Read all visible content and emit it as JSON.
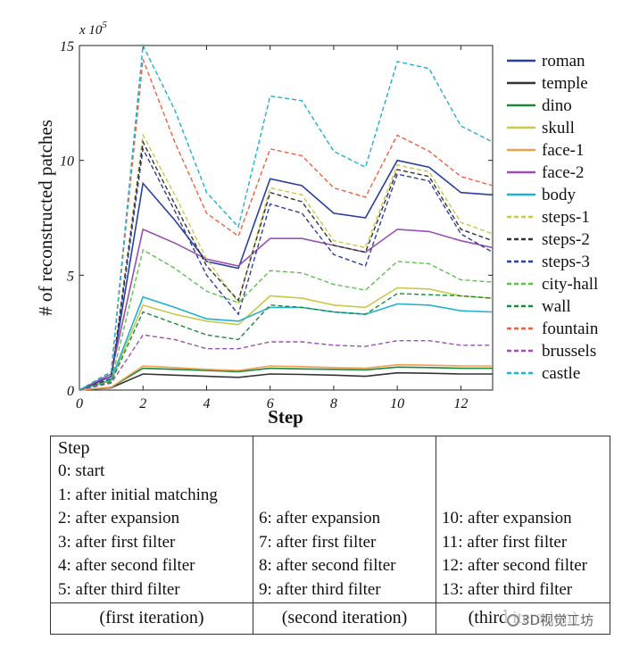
{
  "chart_data": {
    "type": "line",
    "title": "",
    "xlabel": "Step",
    "ylabel": "# of reconstructed patches",
    "y_multiplier": "x 10",
    "y_multiplier_exp": "5",
    "xlim": [
      0,
      13
    ],
    "ylim": [
      0,
      15
    ],
    "xticks": [
      0,
      2,
      4,
      6,
      8,
      10,
      12
    ],
    "yticks": [
      0,
      5,
      10,
      15
    ],
    "grid": false,
    "legend_position": "right",
    "x": [
      0,
      1,
      2,
      3,
      4,
      5,
      6,
      7,
      8,
      9,
      10,
      11,
      12,
      13
    ],
    "series": [
      {
        "name": "roman",
        "color": "#2a3f9e",
        "dash": "solid",
        "values": [
          0,
          0.6,
          9.0,
          7.4,
          5.6,
          5.3,
          9.2,
          8.9,
          7.7,
          7.5,
          10.0,
          9.7,
          8.6,
          8.5
        ]
      },
      {
        "name": "temple",
        "color": "#333333",
        "dash": "solid",
        "values": [
          0,
          0.1,
          0.7,
          0.65,
          0.6,
          0.55,
          0.7,
          0.68,
          0.65,
          0.6,
          0.75,
          0.73,
          0.7,
          0.7
        ]
      },
      {
        "name": "dino",
        "color": "#1a8a3a",
        "dash": "solid",
        "values": [
          0,
          0.12,
          0.95,
          0.9,
          0.85,
          0.8,
          0.95,
          0.92,
          0.9,
          0.88,
          1.0,
          0.98,
          0.95,
          0.95
        ]
      },
      {
        "name": "skull",
        "color": "#c8c84a",
        "dash": "solid",
        "values": [
          0,
          0.4,
          3.7,
          3.3,
          3.0,
          2.85,
          4.1,
          4.0,
          3.7,
          3.6,
          4.45,
          4.4,
          4.1,
          4.0
        ]
      },
      {
        "name": "face-1",
        "color": "#f0a050",
        "dash": "solid",
        "values": [
          0,
          0.12,
          1.05,
          0.98,
          0.9,
          0.85,
          1.05,
          1.02,
          0.98,
          0.95,
          1.1,
          1.08,
          1.05,
          1.05
        ]
      },
      {
        "name": "face-2",
        "color": "#9b4fb0",
        "dash": "solid",
        "values": [
          0,
          0.7,
          7.0,
          6.4,
          5.7,
          5.4,
          6.6,
          6.6,
          6.3,
          6.0,
          7.0,
          6.9,
          6.5,
          6.2
        ]
      },
      {
        "name": "body",
        "color": "#20b0d0",
        "dash": "solid",
        "values": [
          0,
          0.45,
          4.05,
          3.6,
          3.1,
          3.0,
          3.6,
          3.6,
          3.4,
          3.3,
          3.75,
          3.7,
          3.45,
          3.4
        ]
      },
      {
        "name": "steps-1",
        "color": "#c8c84a",
        "dash": "dashed",
        "values": [
          0,
          0.5,
          11.1,
          8.5,
          5.7,
          3.8,
          8.8,
          8.5,
          6.5,
          6.2,
          9.8,
          9.5,
          7.3,
          6.8
        ]
      },
      {
        "name": "steps-2",
        "color": "#333333",
        "dash": "dashed",
        "values": [
          0,
          0.5,
          10.8,
          8.1,
          5.4,
          3.9,
          8.6,
          8.2,
          6.3,
          6.0,
          9.6,
          9.3,
          7.0,
          6.5
        ]
      },
      {
        "name": "steps-3",
        "color": "#2a3f9e",
        "dash": "dashed",
        "values": [
          0,
          0.4,
          10.5,
          7.8,
          5.0,
          3.3,
          8.1,
          7.7,
          5.9,
          5.4,
          9.4,
          9.1,
          6.8,
          6.0
        ]
      },
      {
        "name": "city-hall",
        "color": "#5cc050",
        "dash": "dashed",
        "values": [
          0,
          0.4,
          6.1,
          5.3,
          4.3,
          3.8,
          5.2,
          5.1,
          4.6,
          4.35,
          5.6,
          5.5,
          4.8,
          4.7
        ]
      },
      {
        "name": "wall",
        "color": "#1a8a3a",
        "dash": "dashed",
        "values": [
          0,
          0.35,
          3.4,
          2.9,
          2.4,
          2.2,
          3.7,
          3.6,
          3.4,
          3.3,
          4.2,
          4.15,
          4.1,
          4.0
        ]
      },
      {
        "name": "fountain",
        "color": "#f06040",
        "dash": "dashed",
        "values": [
          0,
          0.8,
          14.4,
          10.8,
          7.7,
          6.7,
          10.5,
          10.2,
          8.8,
          8.4,
          11.1,
          10.4,
          9.3,
          8.9
        ]
      },
      {
        "name": "brussels",
        "color": "#9b4fb0",
        "dash": "dashed",
        "values": [
          0,
          0.3,
          2.4,
          2.2,
          1.8,
          1.8,
          2.1,
          2.1,
          1.95,
          1.9,
          2.15,
          2.15,
          1.95,
          1.95
        ]
      },
      {
        "name": "castle",
        "color": "#20b0d0",
        "dash": "dashed",
        "values": [
          0,
          0.8,
          15.0,
          12.2,
          8.6,
          7.1,
          12.8,
          12.6,
          10.4,
          9.7,
          14.3,
          14.0,
          11.5,
          10.8
        ]
      }
    ]
  },
  "table": {
    "header": "Step",
    "col1": [
      "0: start",
      "1: after initial matching",
      "2: after expansion",
      "3: after first filter",
      "4: after second filter",
      "5: after third filter"
    ],
    "col2": [
      "6: after expansion",
      "7: after first filter",
      "8: after second filter",
      "9: after third filter"
    ],
    "col3": [
      "10: after expansion",
      "11: after first filter",
      "12: after second filter",
      "13: after third filter"
    ],
    "iterations": [
      "(first iteration)",
      "(second iteration)",
      "(third iteration)"
    ]
  },
  "watermark": "3D视觉工坊"
}
